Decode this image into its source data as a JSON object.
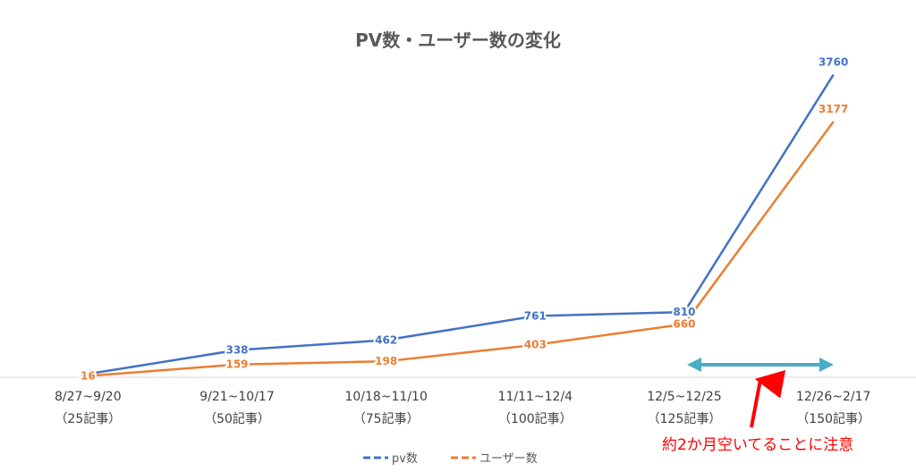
{
  "chart_data": {
    "type": "line",
    "title": "PV数・ユーザー数の変化",
    "categories": [
      [
        "8/27~9/20",
        "（25記事）"
      ],
      [
        "9/21~10/17",
        "（50記事）"
      ],
      [
        "10/18~11/10",
        "（75記事）"
      ],
      [
        "11/11~12/4",
        "（100記事）"
      ],
      [
        "12/5~12/25",
        "（125記事）"
      ],
      [
        "12/26~2/17",
        "（150記事）"
      ]
    ],
    "series": [
      {
        "name": "pv数",
        "color": "#4472c4",
        "values": [
          41,
          338,
          462,
          761,
          810,
          3760
        ]
      },
      {
        "name": "ユーザー数",
        "color": "#ed7d31",
        "values": [
          16,
          159,
          198,
          403,
          660,
          3177
        ]
      }
    ],
    "ylim": [
      0,
      4000
    ],
    "grid": false,
    "legend": "bottom"
  },
  "annotation": {
    "text": "約2か月空いてることに注意",
    "text_color": "#ff0000",
    "span_color": "#4bacc6"
  }
}
